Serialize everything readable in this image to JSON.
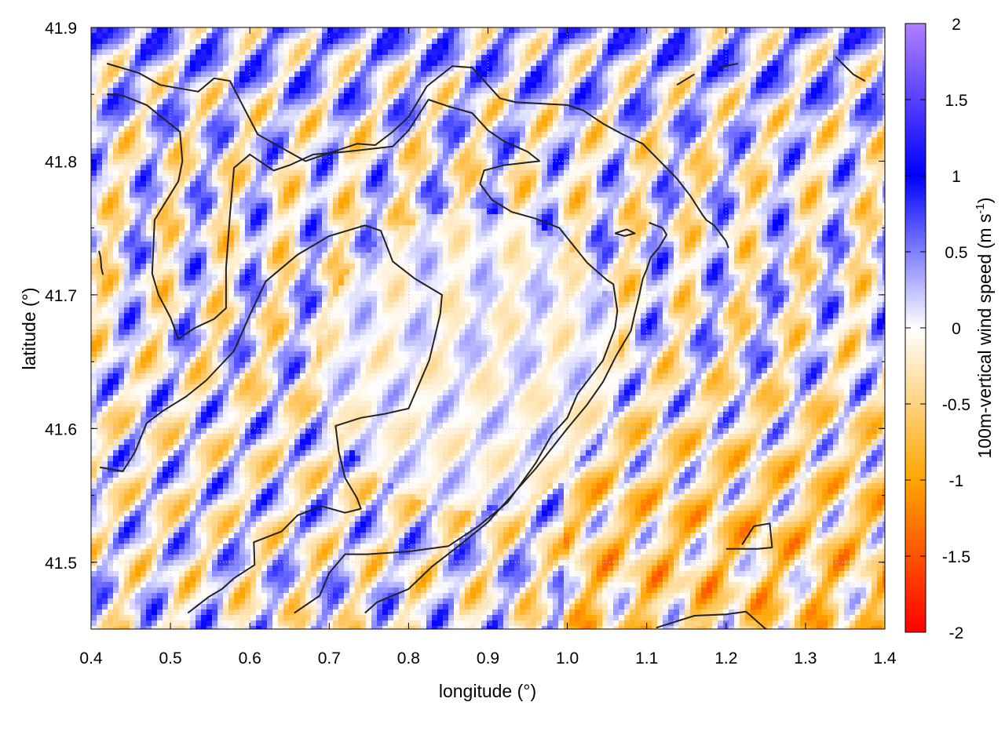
{
  "chart_data": {
    "type": "heatmap",
    "title": "",
    "xlabel": "longitude (°)",
    "ylabel": "latitude (°)",
    "xlim": [
      0.4,
      1.4
    ],
    "ylim": [
      41.45,
      41.9
    ],
    "xticks": [
      "0.4",
      "0.5",
      "0.6",
      "0.7",
      "0.8",
      "0.9",
      "1.0",
      "1.1",
      "1.2",
      "1.3",
      "1.4"
    ],
    "yticks": [
      "41.5",
      "41.6",
      "41.7",
      "41.8",
      "41.9"
    ],
    "grid": true,
    "colorbar": {
      "label_main": "100m-vertical wind speed (m s",
      "label_sup": "-1",
      "label_end": ")",
      "range": [
        -2,
        2
      ],
      "ticks": [
        "2",
        "1.5",
        "1",
        "0.5",
        "0",
        "-0.5",
        "-1",
        "-1.5",
        "-2"
      ],
      "colors": {
        "2": "#b080ff",
        "1": "#0000ff",
        "0": "#ffffff",
        "-1": "#ffa500",
        "-2": "#ff0000"
      }
    },
    "contours": [
      [
        [
          0.42,
          41.873
        ],
        [
          0.46,
          41.866
        ],
        [
          0.487,
          41.857
        ],
        [
          0.535,
          41.852
        ],
        [
          0.555,
          41.862
        ],
        [
          0.575,
          41.86
        ],
        [
          0.61,
          41.82
        ],
        [
          0.67,
          41.8
        ],
        [
          0.7,
          41.806
        ],
        [
          0.735,
          41.813
        ],
        [
          0.758,
          41.812
        ],
        [
          0.78,
          41.822
        ],
        [
          0.8,
          41.833
        ],
        [
          0.823,
          41.856
        ],
        [
          0.855,
          41.871
        ],
        [
          0.88,
          41.87
        ],
        [
          0.915,
          41.847
        ],
        [
          0.935,
          41.844
        ],
        [
          0.97,
          41.843
        ],
        [
          1.0,
          41.842
        ],
        [
          1.02,
          41.838
        ],
        [
          1.045,
          41.828
        ],
        [
          1.07,
          41.82
        ],
        [
          1.095,
          41.813
        ],
        [
          1.12,
          41.798
        ],
        [
          1.138,
          41.787
        ],
        [
          1.155,
          41.774
        ],
        [
          1.17,
          41.76
        ],
        [
          1.175,
          41.756
        ],
        [
          1.185,
          41.752
        ],
        [
          1.2,
          41.74
        ],
        [
          1.203,
          41.735
        ]
      ],
      [
        [
          0.42,
          41.85
        ],
        [
          0.44,
          41.849
        ],
        [
          0.47,
          41.842
        ],
        [
          0.495,
          41.83
        ],
        [
          0.512,
          41.822
        ],
        [
          0.515,
          41.8
        ],
        [
          0.51,
          41.785
        ],
        [
          0.48,
          41.756
        ],
        [
          0.477,
          41.716
        ],
        [
          0.485,
          41.7
        ],
        [
          0.5,
          41.683
        ],
        [
          0.51,
          41.667
        ],
        [
          0.53,
          41.675
        ],
        [
          0.555,
          41.682
        ],
        [
          0.57,
          41.69
        ],
        [
          0.57,
          41.72
        ],
        [
          0.575,
          41.76
        ],
        [
          0.58,
          41.795
        ],
        [
          0.6,
          41.805
        ],
        [
          0.63,
          41.793
        ],
        [
          0.65,
          41.797
        ],
        [
          0.68,
          41.805
        ],
        [
          0.72,
          41.807
        ],
        [
          0.78,
          41.811
        ],
        [
          0.8,
          41.823
        ],
        [
          0.825,
          41.846
        ],
        [
          0.85,
          41.841
        ],
        [
          0.88,
          41.836
        ],
        [
          0.9,
          41.823
        ],
        [
          0.92,
          41.815
        ],
        [
          0.95,
          41.807
        ],
        [
          0.965,
          41.8
        ],
        [
          0.92,
          41.797
        ],
        [
          0.895,
          41.793
        ],
        [
          0.89,
          41.783
        ],
        [
          0.905,
          41.771
        ],
        [
          0.93,
          41.762
        ],
        [
          0.96,
          41.757
        ],
        [
          0.99,
          41.75
        ],
        [
          1.025,
          41.724
        ],
        [
          1.05,
          41.711
        ],
        [
          1.058,
          41.708
        ],
        [
          1.063,
          41.688
        ],
        [
          1.06,
          41.675
        ],
        [
          1.045,
          41.651
        ],
        [
          1.013,
          41.626
        ],
        [
          1.0,
          41.608
        ],
        [
          0.98,
          41.595
        ],
        [
          0.96,
          41.574
        ],
        [
          0.925,
          41.545
        ],
        [
          0.888,
          41.527
        ],
        [
          0.85,
          41.512
        ],
        [
          0.8,
          41.508
        ],
        [
          0.748,
          41.506
        ],
        [
          0.72,
          41.506
        ],
        [
          0.7,
          41.492
        ],
        [
          0.688,
          41.475
        ],
        [
          0.656,
          41.462
        ]
      ],
      [
        [
          0.411,
          41.571
        ],
        [
          0.44,
          41.568
        ],
        [
          0.455,
          41.582
        ],
        [
          0.47,
          41.604
        ],
        [
          0.49,
          41.613
        ],
        [
          0.52,
          41.624
        ],
        [
          0.545,
          41.636
        ],
        [
          0.58,
          41.658
        ],
        [
          0.6,
          41.685
        ],
        [
          0.62,
          41.71
        ],
        [
          0.66,
          41.73
        ],
        [
          0.7,
          41.744
        ],
        [
          0.745,
          41.752
        ],
        [
          0.765,
          41.748
        ],
        [
          0.78,
          41.725
        ],
        [
          0.808,
          41.712
        ],
        [
          0.842,
          41.7
        ],
        [
          0.84,
          41.686
        ],
        [
          0.826,
          41.651
        ],
        [
          0.8,
          41.615
        ],
        [
          0.77,
          41.611
        ],
        [
          0.74,
          41.608
        ],
        [
          0.708,
          41.602
        ],
        [
          0.712,
          41.583
        ],
        [
          0.72,
          41.563
        ],
        [
          0.735,
          41.548
        ],
        [
          0.74,
          41.54
        ],
        [
          0.72,
          41.537
        ],
        [
          0.69,
          41.542
        ],
        [
          0.66,
          41.535
        ],
        [
          0.64,
          41.523
        ],
        [
          0.605,
          41.515
        ],
        [
          0.606,
          41.498
        ],
        [
          0.58,
          41.488
        ],
        [
          0.565,
          41.48
        ],
        [
          0.548,
          41.474
        ],
        [
          0.522,
          41.462
        ]
      ],
      [
        [
          1.103,
          41.754
        ],
        [
          1.12,
          41.75
        ],
        [
          1.125,
          41.745
        ],
        [
          1.115,
          41.735
        ],
        [
          1.105,
          41.728
        ],
        [
          1.1,
          41.719
        ],
        [
          1.095,
          41.712
        ],
        [
          1.09,
          41.698
        ],
        [
          1.085,
          41.686
        ],
        [
          1.08,
          41.673
        ],
        [
          1.062,
          41.655
        ],
        [
          1.045,
          41.635
        ],
        [
          1.025,
          41.618
        ],
        [
          1.0,
          41.6
        ],
        [
          0.98,
          41.585
        ],
        [
          0.96,
          41.57
        ],
        [
          0.93,
          41.55
        ],
        [
          0.9,
          41.53
        ],
        [
          0.865,
          41.513
        ],
        [
          0.83,
          41.497
        ],
        [
          0.8,
          41.48
        ],
        [
          0.76,
          41.47
        ],
        [
          0.745,
          41.462
        ]
      ],
      [
        [
          1.06,
          41.746
        ],
        [
          1.075,
          41.749
        ],
        [
          1.085,
          41.746
        ],
        [
          1.072,
          41.744
        ],
        [
          1.06,
          41.746
        ]
      ],
      [
        [
          0.41,
          41.733
        ],
        [
          0.412,
          41.728
        ],
        [
          0.413,
          41.72
        ],
        [
          0.415,
          41.715
        ]
      ],
      [
        [
          1.138,
          41.857
        ],
        [
          1.16,
          41.865
        ]
      ],
      [
        [
          1.19,
          41.87
        ],
        [
          1.215,
          41.873
        ]
      ],
      [
        [
          1.338,
          41.878
        ],
        [
          1.36,
          41.865
        ],
        [
          1.375,
          41.86
        ]
      ],
      [
        [
          1.112,
          41.451
        ],
        [
          1.16,
          41.46
        ],
        [
          1.2,
          41.461
        ],
        [
          1.225,
          41.463
        ],
        [
          1.25,
          41.45
        ],
        [
          1.27,
          41.448
        ],
        [
          1.283,
          41.445
        ]
      ],
      [
        [
          1.22,
          41.513
        ],
        [
          1.235,
          41.527
        ],
        [
          1.255,
          41.529
        ],
        [
          1.258,
          41.511
        ],
        [
          1.24,
          41.51
        ],
        [
          1.2,
          41.51
        ]
      ]
    ]
  }
}
